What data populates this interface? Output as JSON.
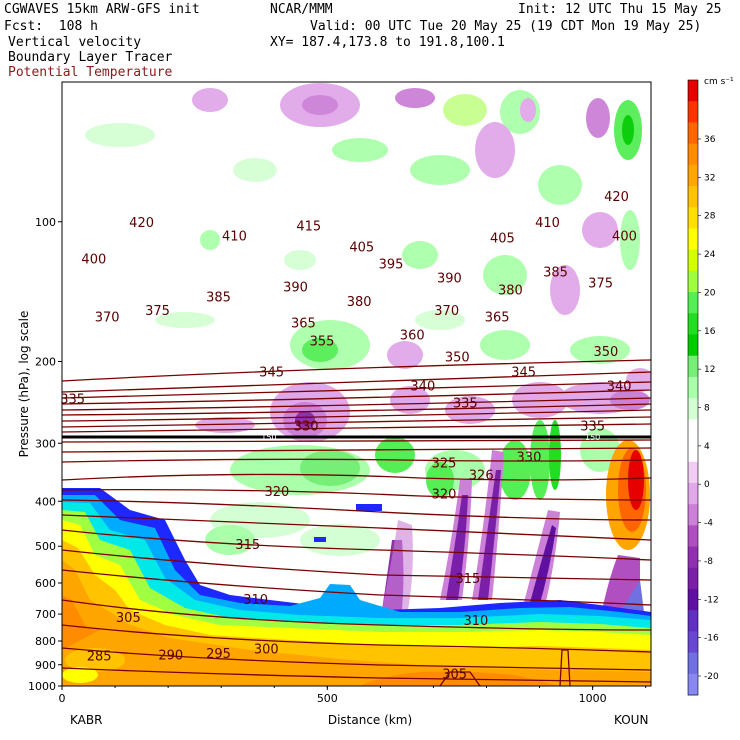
{
  "header": {
    "model": "CGWAVES 15km ARW-GFS init",
    "org": "NCAR/MMM",
    "init": "Init: 12 UTC Thu 15 May 25",
    "fcst": "Fcst:  108 h",
    "valid": "Valid: 00 UTC Tue 20 May 25 (19 CDT Mon 19 May 25)",
    "field1": "Vertical velocity",
    "field2": "Boundary Layer Tracer",
    "field3": "Potential Temperature",
    "xy": "XY= 187.4,173.8 to 191.8,100.1"
  },
  "chart_data": {
    "type": "heatmap",
    "xlabel": "Distance (km)",
    "ylabel": "Pressure (hPa), log scale",
    "xlim": [
      0,
      1110
    ],
    "ylim": [
      1000,
      50
    ],
    "y_scale": "log",
    "x_ticks": [
      0,
      500,
      1000
    ],
    "y_ticks": [
      100,
      200,
      300,
      400,
      500,
      600,
      700,
      800,
      900,
      1000
    ],
    "endpoints": {
      "left": "KABR",
      "right": "KOUN"
    },
    "colorbar": {
      "unit": "cm s⁻¹",
      "tick_labels": [
        36,
        32,
        28,
        24,
        20,
        16,
        12,
        8,
        4,
        0,
        -4,
        -8,
        -12,
        -16,
        -20
      ],
      "colors": [
        "#e60000",
        "#ff3300",
        "#ff6600",
        "#ff8c00",
        "#ffa500",
        "#ffc300",
        "#ffe000",
        "#ffff00",
        "#d4ff00",
        "#a0ff40",
        "#55ee55",
        "#22dd22",
        "#00cc00",
        "#77ee77",
        "#aaffaa",
        "#d4ffd4",
        "#ffffff",
        "#ffffff",
        "#f2ccf2",
        "#e0a8e8",
        "#cc80d8",
        "#b050c0",
        "#9030b0",
        "#7a20a8",
        "#6010a0",
        "#6030c0",
        "#6848d0",
        "#7070e0",
        "#8888f0"
      ]
    },
    "theta_contours": [
      {
        "value": 285,
        "p": 860,
        "x": 70
      },
      {
        "value": 290,
        "p": 855,
        "x": 205
      },
      {
        "value": 295,
        "p": 850,
        "x": 295
      },
      {
        "value": 300,
        "p": 830,
        "x": 385
      },
      {
        "value": 305,
        "p": 710,
        "x": 125
      },
      {
        "value": 305,
        "p": 940,
        "x": 740
      },
      {
        "value": 310,
        "p": 650,
        "x": 365
      },
      {
        "value": 310,
        "p": 720,
        "x": 780
      },
      {
        "value": 315,
        "p": 495,
        "x": 350
      },
      {
        "value": 315,
        "p": 585,
        "x": 765
      },
      {
        "value": 320,
        "p": 380,
        "x": 405
      },
      {
        "value": 320,
        "p": 385,
        "x": 720
      },
      {
        "value": 325,
        "p": 330,
        "x": 720
      },
      {
        "value": 326,
        "p": 350,
        "x": 790
      },
      {
        "value": 330,
        "p": 275,
        "x": 460
      },
      {
        "value": 330,
        "p": 320,
        "x": 880
      },
      {
        "value": 335,
        "p": 240,
        "x": 20
      },
      {
        "value": 335,
        "p": 245,
        "x": 760
      },
      {
        "value": 335,
        "p": 275,
        "x": 1000
      },
      {
        "value": 340,
        "p": 225,
        "x": 680
      },
      {
        "value": 340,
        "p": 225,
        "x": 1050
      },
      {
        "value": 345,
        "p": 210,
        "x": 395
      },
      {
        "value": 345,
        "p": 210,
        "x": 870
      },
      {
        "value": 350,
        "p": 195,
        "x": 745
      },
      {
        "value": 350,
        "p": 190,
        "x": 1025
      },
      {
        "value": 355,
        "p": 180,
        "x": 490
      },
      {
        "value": 360,
        "p": 175,
        "x": 660
      },
      {
        "value": 365,
        "p": 165,
        "x": 455
      },
      {
        "value": 365,
        "p": 160,
        "x": 820
      },
      {
        "value": 370,
        "p": 160,
        "x": 85
      },
      {
        "value": 370,
        "p": 155,
        "x": 725
      },
      {
        "value": 375,
        "p": 155,
        "x": 180
      },
      {
        "value": 375,
        "p": 135,
        "x": 1015
      },
      {
        "value": 380,
        "p": 140,
        "x": 845
      },
      {
        "value": 380,
        "p": 148,
        "x": 560
      },
      {
        "value": 385,
        "p": 145,
        "x": 295
      },
      {
        "value": 385,
        "p": 128,
        "x": 930
      },
      {
        "value": 390,
        "p": 138,
        "x": 440
      },
      {
        "value": 390,
        "p": 132,
        "x": 730
      },
      {
        "value": 395,
        "p": 123,
        "x": 620
      },
      {
        "value": 400,
        "p": 120,
        "x": 60
      },
      {
        "value": 400,
        "p": 107,
        "x": 1060
      },
      {
        "value": 405,
        "p": 113,
        "x": 565
      },
      {
        "value": 405,
        "p": 108,
        "x": 830
      },
      {
        "value": 410,
        "p": 107,
        "x": 325
      },
      {
        "value": 410,
        "p": 100,
        "x": 915
      },
      {
        "value": 415,
        "p": 102,
        "x": 465
      },
      {
        "value": 420,
        "p": 100,
        "x": 150
      },
      {
        "value": 420,
        "p": 88,
        "x": 1045
      }
    ],
    "trop_marks": [
      {
        "value": 150,
        "x": 390
      },
      {
        "value": 150,
        "x": 1000
      }
    ]
  }
}
